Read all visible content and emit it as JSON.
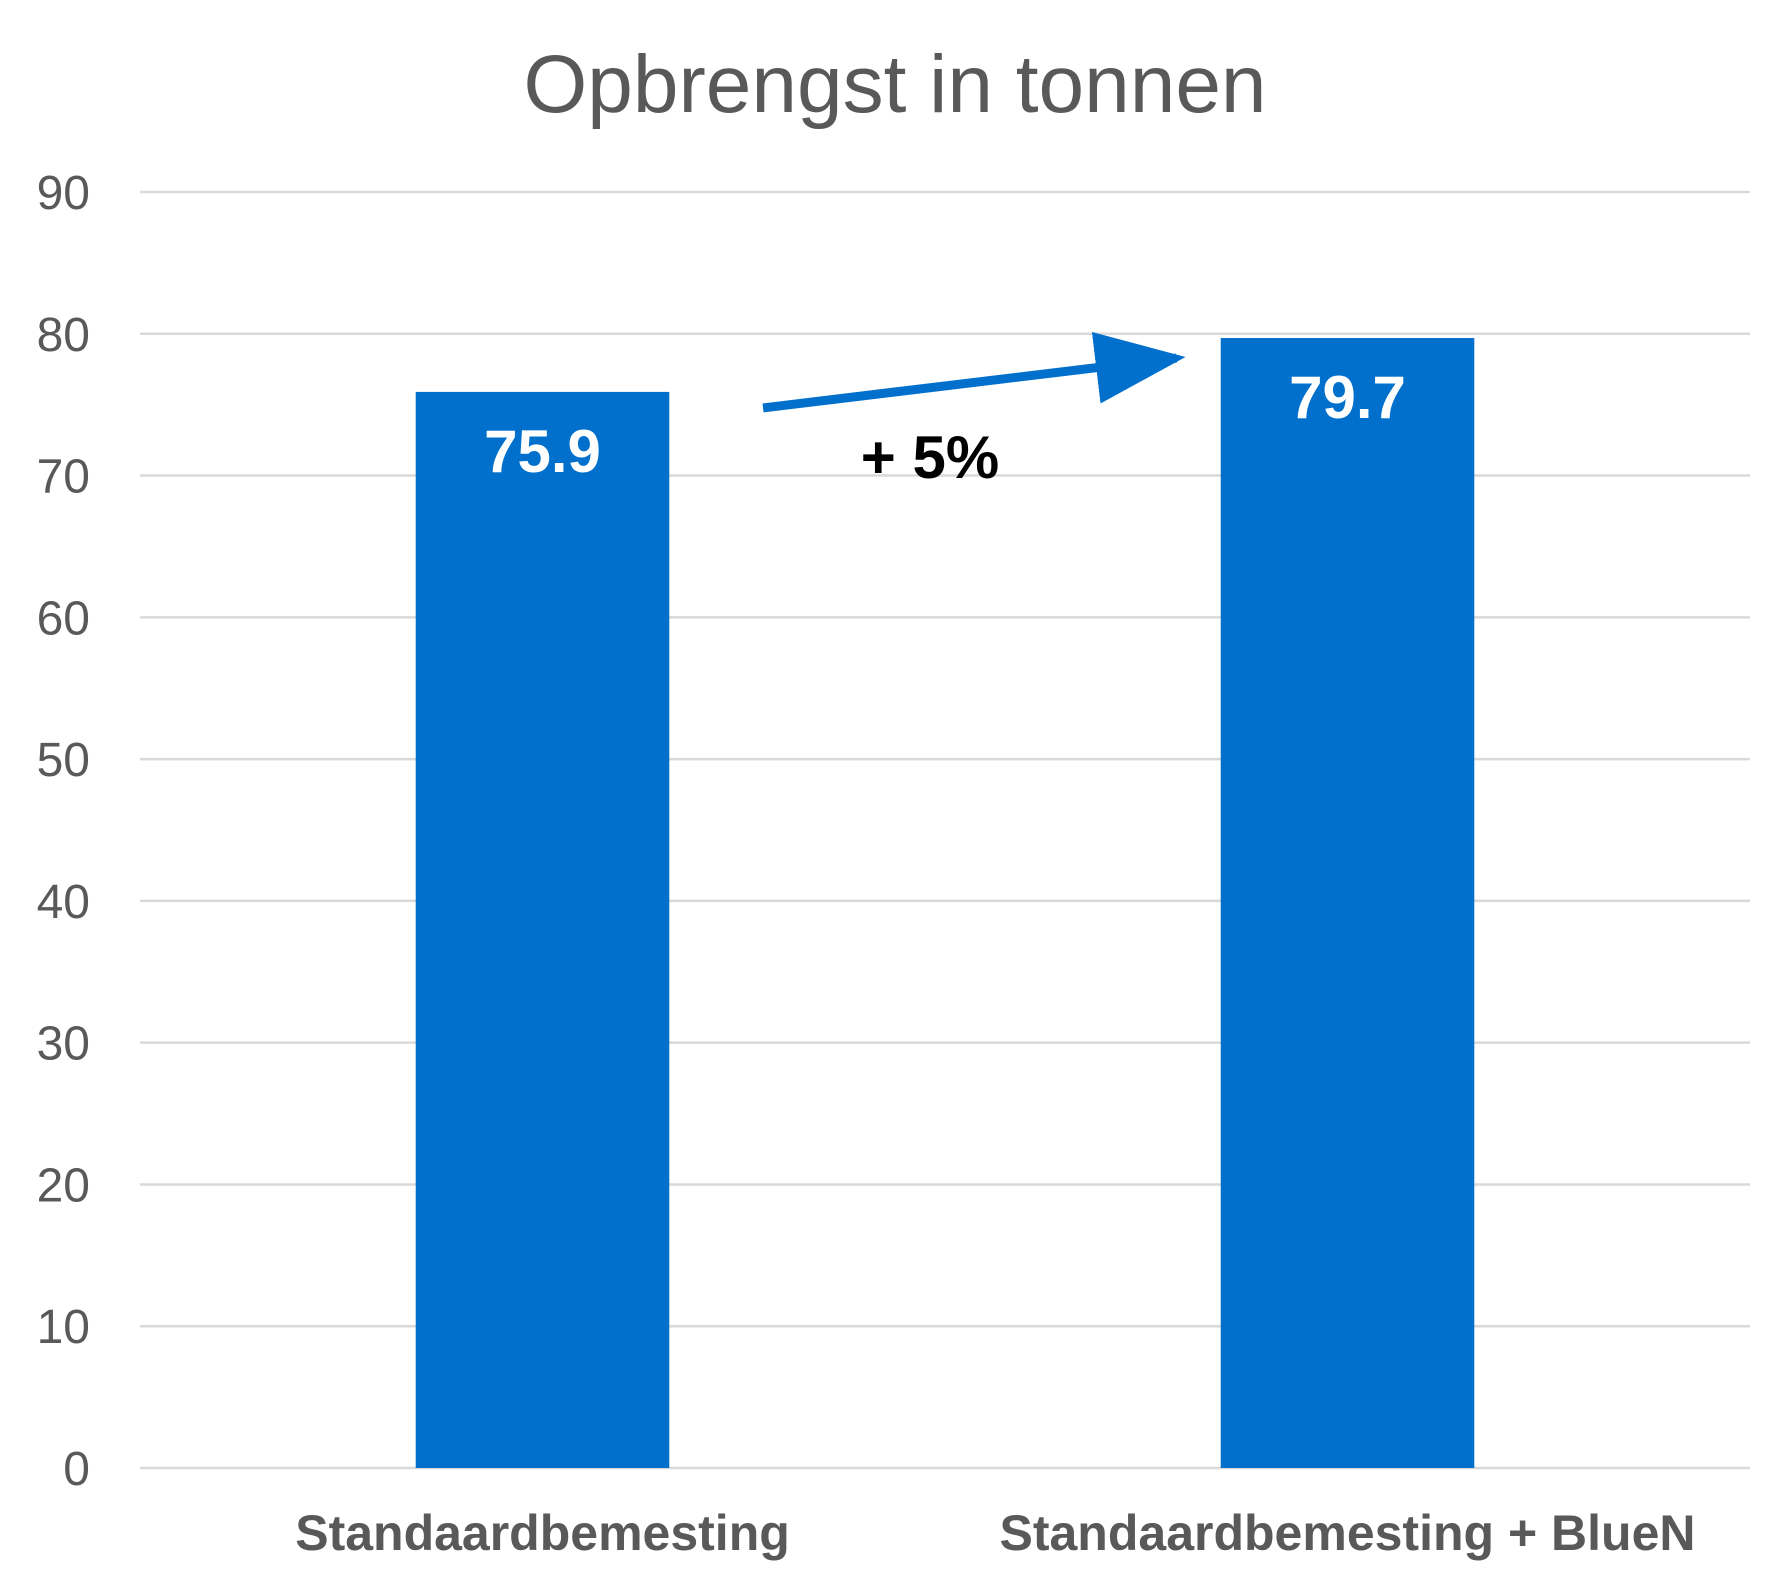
{
  "chart_data": {
    "type": "bar",
    "title": "Opbrengst in tonnen",
    "xlabel": "",
    "ylabel": "",
    "categories": [
      "Standaardbemesting",
      "Standaardbemesting + BlueN"
    ],
    "values": [
      75.9,
      79.7
    ],
    "data_labels": [
      "75.9",
      "79.7"
    ],
    "ylim": [
      0,
      90
    ],
    "yticks": [
      0,
      10,
      20,
      30,
      40,
      50,
      60,
      70,
      80,
      90
    ],
    "grid": true,
    "legend": "none",
    "annotation": {
      "text": "+ 5%",
      "arrow_from_category": "Standaardbemesting",
      "arrow_to_category": "Standaardbemesting + BlueN"
    },
    "colors": {
      "bar": "#0070CC",
      "arrow": "#0070CC",
      "grid": "#d9d9d9",
      "axis_text": "#595959"
    }
  }
}
